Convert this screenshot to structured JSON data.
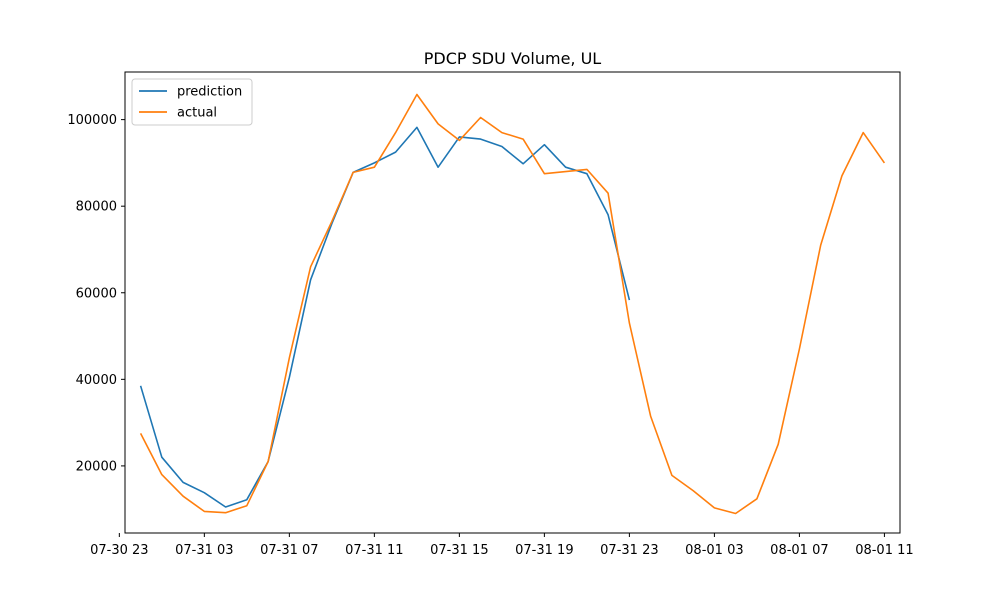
{
  "chart_data": {
    "type": "line",
    "title": "PDCP SDU Volume, UL",
    "xlabel": "",
    "ylabel": "",
    "x_unit": "timestamp (YYYY-MM-DD HH:MM)",
    "xlim": [
      "2019-07-30 23:16",
      "2019-08-01 11:44"
    ],
    "ylim": [
      4500,
      111000
    ],
    "x_ticks": [
      {
        "t": "2019-07-30 23:00",
        "label": "07-30 23"
      },
      {
        "t": "2019-07-31 03:00",
        "label": "07-31 03"
      },
      {
        "t": "2019-07-31 07:00",
        "label": "07-31 07"
      },
      {
        "t": "2019-07-31 11:00",
        "label": "07-31 11"
      },
      {
        "t": "2019-07-31 15:00",
        "label": "07-31 15"
      },
      {
        "t": "2019-07-31 19:00",
        "label": "07-31 19"
      },
      {
        "t": "2019-07-31 23:00",
        "label": "07-31 23"
      },
      {
        "t": "2019-08-01 03:00",
        "label": "08-01 03"
      },
      {
        "t": "2019-08-01 07:00",
        "label": "08-01 07"
      },
      {
        "t": "2019-08-01 11:00",
        "label": "08-01 11"
      }
    ],
    "y_ticks": [
      {
        "value": 20000,
        "label": "20000"
      },
      {
        "value": 40000,
        "label": "40000"
      },
      {
        "value": 60000,
        "label": "60000"
      },
      {
        "value": 80000,
        "label": "80000"
      },
      {
        "value": 100000,
        "label": "100000"
      }
    ],
    "legend": {
      "position": "top-left"
    },
    "grid": false,
    "series": [
      {
        "name": "prediction",
        "color": "#1f77b4",
        "x": [
          "2019-07-31 00:00",
          "2019-07-31 01:00",
          "2019-07-31 02:00",
          "2019-07-31 03:00",
          "2019-07-31 04:00",
          "2019-07-31 05:00",
          "2019-07-31 06:00",
          "2019-07-31 07:00",
          "2019-07-31 08:00",
          "2019-07-31 09:00",
          "2019-07-31 10:00",
          "2019-07-31 11:00",
          "2019-07-31 12:00",
          "2019-07-31 13:00",
          "2019-07-31 14:00",
          "2019-07-31 15:00",
          "2019-07-31 16:00",
          "2019-07-31 17:00",
          "2019-07-31 18:00",
          "2019-07-31 19:00",
          "2019-07-31 20:00",
          "2019-07-31 21:00",
          "2019-07-31 22:00",
          "2019-07-31 23:00"
        ],
        "y": [
          38500,
          22000,
          16200,
          13800,
          10500,
          12200,
          21000,
          40500,
          63000,
          76000,
          87800,
          90000,
          92500,
          98200,
          89000,
          96000,
          95500,
          93800,
          89800,
          94200,
          89000,
          87500,
          78000,
          58300
        ]
      },
      {
        "name": "actual",
        "color": "#ff7f0e",
        "x": [
          "2019-07-31 00:00",
          "2019-07-31 01:00",
          "2019-07-31 02:00",
          "2019-07-31 03:00",
          "2019-07-31 04:00",
          "2019-07-31 05:00",
          "2019-07-31 06:00",
          "2019-07-31 07:00",
          "2019-07-31 08:00",
          "2019-07-31 09:00",
          "2019-07-31 10:00",
          "2019-07-31 11:00",
          "2019-07-31 12:00",
          "2019-07-31 13:00",
          "2019-07-31 14:00",
          "2019-07-31 15:00",
          "2019-07-31 16:00",
          "2019-07-31 17:00",
          "2019-07-31 18:00",
          "2019-07-31 19:00",
          "2019-07-31 20:00",
          "2019-07-31 21:00",
          "2019-07-31 22:00",
          "2019-07-31 23:00",
          "2019-08-01 00:00",
          "2019-08-01 01:00",
          "2019-08-01 02:00",
          "2019-08-01 03:00",
          "2019-08-01 04:00",
          "2019-08-01 05:00",
          "2019-08-01 06:00",
          "2019-08-01 07:00",
          "2019-08-01 08:00",
          "2019-08-01 09:00",
          "2019-08-01 10:00",
          "2019-08-01 11:00"
        ],
        "y": [
          27500,
          18000,
          13000,
          9500,
          9200,
          10800,
          21000,
          45000,
          66000,
          76500,
          87800,
          89000,
          97000,
          105800,
          99000,
          95200,
          100500,
          97000,
          95500,
          87500,
          88000,
          88500,
          83000,
          53000,
          31500,
          17800,
          14300,
          10300,
          9000,
          12400,
          25000,
          47000,
          71000,
          87000,
          97000,
          90000
        ]
      }
    ]
  }
}
